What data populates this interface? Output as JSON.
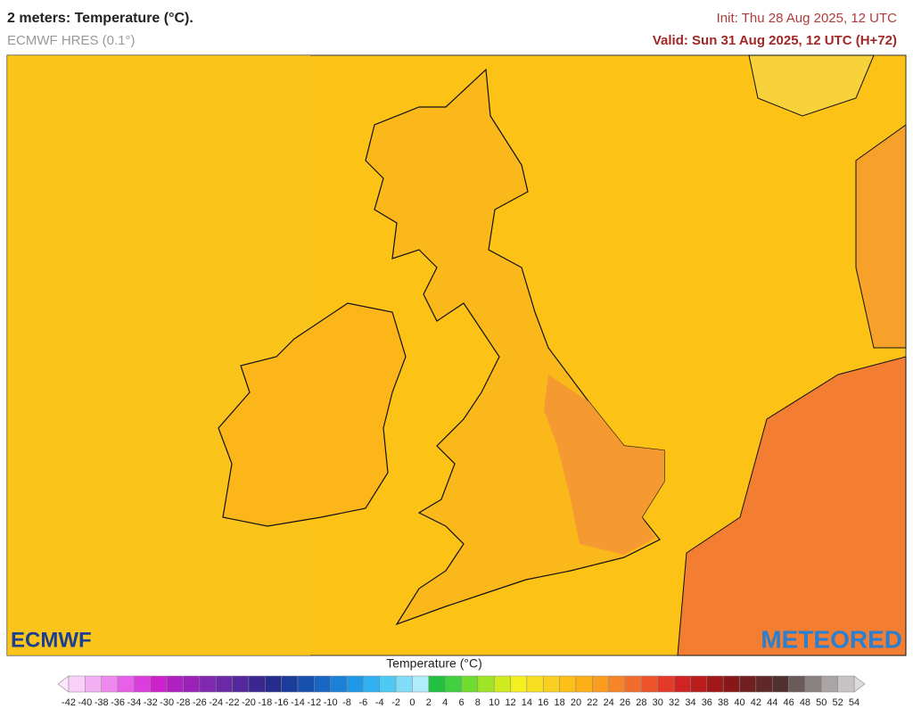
{
  "header": {
    "title": "2 meters: Temperature (°C).",
    "model": "ECMWF HRES (0.1°)",
    "init": "Init: Thu 28 Aug 2025, 12 UTC",
    "valid": "Valid: Sun 31 Aug 2025, 12 UTC (H+72)"
  },
  "logos": {
    "left": "ECMWF",
    "right": "METEORED"
  },
  "colorbar": {
    "title": "Temperature (°C)",
    "ticks": [
      -42,
      -40,
      -38,
      -36,
      -34,
      -32,
      -30,
      -28,
      -26,
      -24,
      -22,
      -20,
      -18,
      -16,
      -14,
      -12,
      -10,
      -8,
      -6,
      -4,
      -2,
      0,
      2,
      4,
      6,
      8,
      10,
      12,
      14,
      16,
      18,
      20,
      22,
      24,
      26,
      28,
      30,
      32,
      34,
      36,
      38,
      40,
      42,
      44,
      46,
      48,
      50,
      52,
      54
    ]
  }
}
